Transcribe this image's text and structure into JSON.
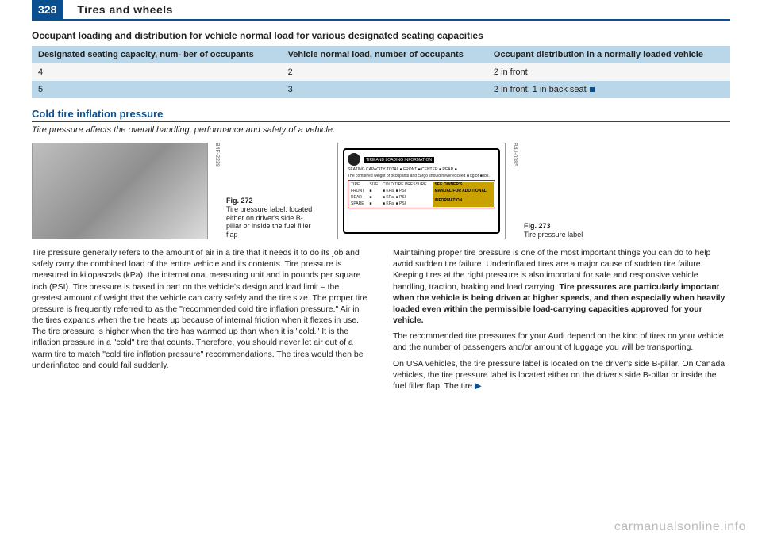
{
  "header": {
    "page_number": "328",
    "title": "Tires and wheels"
  },
  "section1": {
    "title": "Occupant loading and distribution for vehicle normal load for various designated seating capacities",
    "table": {
      "columns": [
        "Designated seating capacity, num-\nber of occupants",
        "Vehicle normal load, number of\noccupants",
        "Occupant distribution in a normally\nloaded vehicle"
      ],
      "rows": [
        [
          "4",
          "2",
          "2 in front"
        ],
        [
          "5",
          "3",
          "2 in front, 1 in back seat"
        ]
      ]
    }
  },
  "section2": {
    "heading": "Cold tire inflation pressure",
    "tagline": "Tire pressure affects the overall handling, performance and safety of a vehicle."
  },
  "figures": {
    "fig1": {
      "side": "B4F-2228",
      "num": "Fig. 272",
      "label": "Tire pressure label: located either on driver's side B-pillar or inside the fuel filler flap"
    },
    "fig2": {
      "side": "B4J-0385",
      "num": "Fig. 273",
      "label": "Tire pressure label",
      "placard": {
        "title_bar": "TIRE AND LOADING INFORMATION",
        "seating": "SEATING CAPACITY  TOTAL ■  FRONT ■  CENTER ■  REAR ■",
        "weight": "The combined weight of occupants and cargo should never exceed ■ kg or ■ lbs.",
        "rows": [
          [
            "TIRE",
            "SIZE",
            "COLD TIRE PRESSURE",
            ""
          ],
          [
            "FRONT",
            "■",
            "■ KPa, ■ PSI",
            "SEE OWNER'S"
          ],
          [
            "REAR",
            "■",
            "■ KPa, ■ PSI",
            "MANUAL FOR ADDITIONAL"
          ],
          [
            "SPARE",
            "■",
            "■ KPa, ■ PSI",
            "INFORMATION"
          ]
        ]
      }
    }
  },
  "body": {
    "left": "Tire pressure generally refers to the amount of air in a tire that it needs it to do its job and safely carry the combined load of the entire vehicle and its contents. Tire pressure is measured in kilopascals (kPa), the international measuring unit and in pounds per square inch (PSI). Tire pressure is based in part on the vehicle's design and load limit – the greatest amount of weight that the vehicle can carry safely and the tire size. The proper tire pressure is frequently referred to as the \"recommended cold tire inflation pressure.\" Air in the tires expands when the tire heats up because of internal friction when it flexes in use. The tire pressure is higher when the tire has warmed up than when it is \"cold.\" It is the inflation pressure in a \"cold\" tire that counts. Therefore, you should never let air out of a warm tire to match \"cold tire inflation pressure\" recommendations. The tires would then be underinflated and could fail suddenly.",
    "right_p1": "Maintaining proper tire pressure is one of the most important things you can do to help avoid sudden tire failure. Underinflated tires are a major cause of sudden tire failure. Keeping tires at the right pressure is also important for safe and responsive vehicle handling, traction, braking and load carrying. ",
    "right_bold": "Tire pressures are particularly important when the vehicle is being driven at higher speeds, and then especially when heavily loaded even within the permissible load-carrying capacities approved for your vehicle.",
    "right_p2": "The recommended tire pressures for your Audi depend on the kind of tires on your vehicle and the number of passengers and/or amount of luggage you will be transporting.",
    "right_p3": "On USA vehicles, the tire pressure label is located on the driver's side B-pillar. On Canada vehicles, the tire pressure label is located either on the driver's side B-pillar or inside the fuel filler flap. The tire"
  },
  "watermark": "carmanualsonline.info"
}
